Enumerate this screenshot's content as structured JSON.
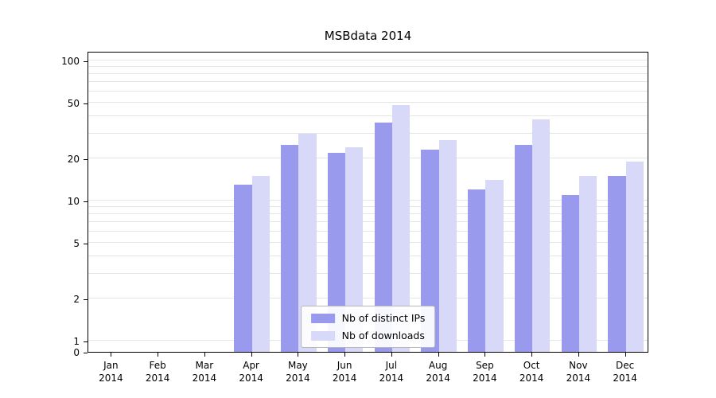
{
  "title": "MSBdata 2014",
  "colors": {
    "series_distinct_ips": "#9999ee",
    "series_downloads": "#d8d8f8",
    "grid": "#e5e5e5",
    "axis": "#000000",
    "background": "#ffffff"
  },
  "chart_data": {
    "type": "bar",
    "title": "MSBdata 2014",
    "scale": "symlog",
    "categories": [
      "Jan",
      "Feb",
      "Mar",
      "Apr",
      "May",
      "Jun",
      "Jul",
      "Aug",
      "Sep",
      "Oct",
      "Nov",
      "Dec"
    ],
    "year_label": "2014",
    "series": [
      {
        "name": "Nb of distinct IPs",
        "color": "#9999ee",
        "values": [
          0,
          0,
          0,
          13,
          25,
          22,
          36,
          23,
          12,
          25,
          11,
          15
        ]
      },
      {
        "name": "Nb of downloads",
        "color": "#d8d8f8",
        "values": [
          0,
          0,
          0,
          15,
          30,
          24,
          48,
          27,
          14,
          38,
          15,
          19
        ]
      }
    ],
    "y_ticks": [
      0,
      1,
      2,
      5,
      10,
      20,
      50,
      100
    ],
    "y_minor_ticks": [
      3,
      4,
      6,
      7,
      8,
      9,
      30,
      40,
      60,
      70,
      80,
      90
    ],
    "ylim": [
      0,
      117
    ],
    "xlabel": "",
    "ylabel": "",
    "grid": "horizontal",
    "legend_position": "lower center"
  }
}
